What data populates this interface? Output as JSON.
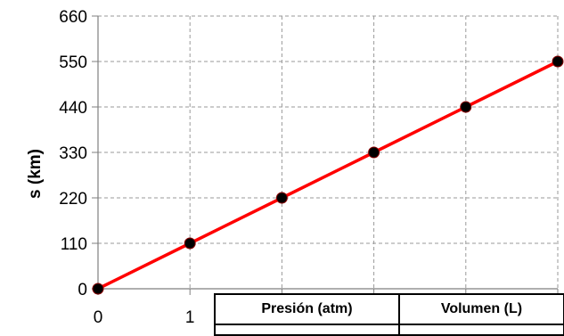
{
  "chart_data": {
    "type": "line",
    "title": "",
    "xlabel": "",
    "ylabel": "s (km)",
    "x": [
      0,
      1,
      2,
      3,
      4,
      5
    ],
    "series": [
      {
        "values": [
          0,
          110,
          220,
          330,
          440,
          550
        ]
      }
    ],
    "xticks": [
      "0",
      "1"
    ],
    "yticks": [
      "0",
      "110",
      "220",
      "330",
      "440",
      "550",
      "660"
    ],
    "ylim": [
      0,
      660
    ],
    "xlim": [
      0,
      5
    ],
    "grid": true,
    "line_color": "#ff0000",
    "marker_color": "#000000"
  },
  "table": {
    "headers": [
      "Presión (atm)",
      "Volumen (L)"
    ]
  }
}
